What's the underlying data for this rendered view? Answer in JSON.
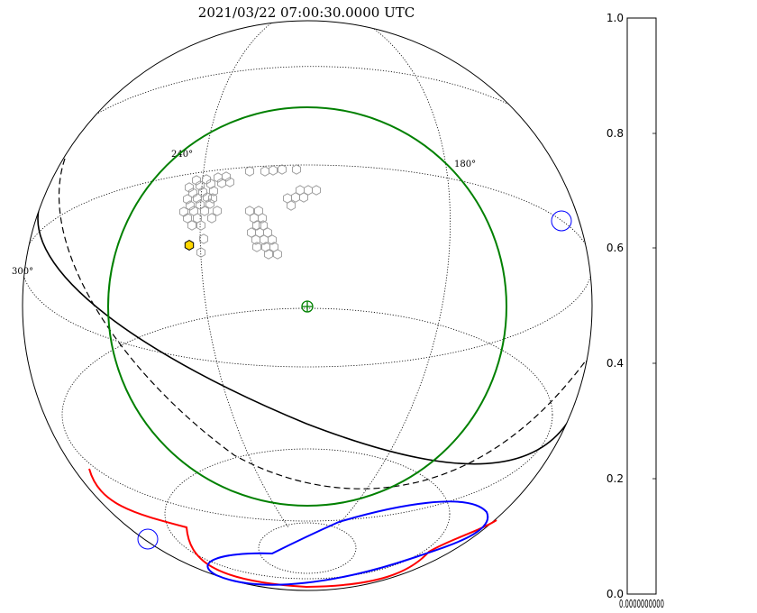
{
  "chart_data": {
    "type": "sky-map",
    "title": "2021/03/22 07:00:30.0000 UTC",
    "ra_labels": [
      "240°",
      "180°",
      "300°"
    ],
    "colorbar": {
      "ylim": [
        0.0,
        1.0
      ],
      "yticks": [
        "0.0",
        "0.2",
        "0.4",
        "0.6",
        "0.8",
        "1.0"
      ],
      "xticks_overlapping": "0.0000000000"
    },
    "overlays": [
      {
        "name": "zenith marker",
        "color": "#008000"
      },
      {
        "name": "zenith circle",
        "color": "#008000"
      },
      {
        "name": "galactic plane",
        "color": "#000000",
        "style": "solid"
      },
      {
        "name": "ecliptic",
        "color": "#000000",
        "style": "dashed"
      },
      {
        "name": "moon limit",
        "color": "#0000ff"
      },
      {
        "name": "horizon limit",
        "color": "#ff0000"
      },
      {
        "name": "highlighted field",
        "color": "#ffd700"
      }
    ]
  }
}
